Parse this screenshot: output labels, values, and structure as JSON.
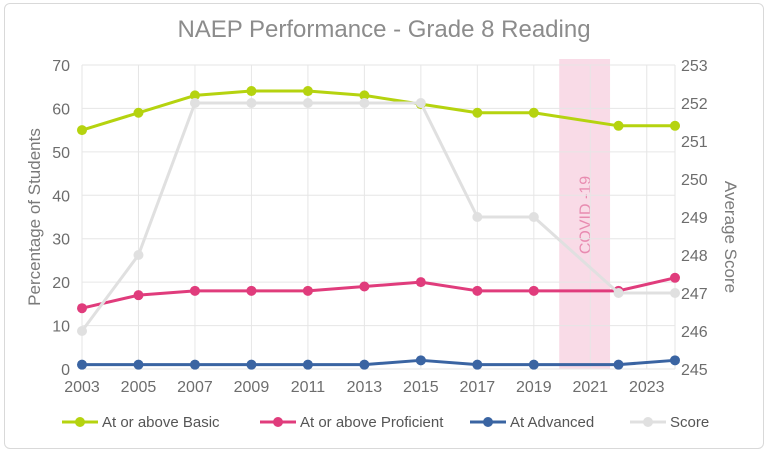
{
  "chart_data": {
    "type": "line",
    "title": "NAEP Performance - Grade 8 Reading",
    "ylabel": "Percentage of  Students",
    "y2label": "Average Score",
    "x_ticks": [
      "2003",
      "2005",
      "2007",
      "2009",
      "2011",
      "2013",
      "2015",
      "2017",
      "2019",
      "2021",
      "2023"
    ],
    "ylim": [
      0,
      70
    ],
    "y_ticks": [
      0,
      10,
      20,
      30,
      40,
      50,
      60,
      70
    ],
    "y2lim": [
      245,
      253
    ],
    "y2_ticks": [
      245,
      246,
      247,
      248,
      249,
      250,
      251,
      252,
      253
    ],
    "grid": true,
    "legend_position": "bottom",
    "annotation": {
      "label": "COVID -19",
      "x_from": 2019.9,
      "x_to": 2021.7,
      "color": "#f9dbe7"
    },
    "series": [
      {
        "name": "At or above Basic",
        "axis": "left",
        "color": "#b5d30f",
        "x": [
          2003,
          2005,
          2007,
          2009,
          2011,
          2013,
          2015,
          2017,
          2019,
          2022,
          2024
        ],
        "values": [
          55,
          59,
          63,
          64,
          64,
          63,
          61,
          59,
          59,
          56,
          56
        ]
      },
      {
        "name": "At or above Proficient",
        "axis": "left",
        "color": "#e03c7c",
        "x": [
          2003,
          2005,
          2007,
          2009,
          2011,
          2013,
          2015,
          2017,
          2019,
          2022,
          2024
        ],
        "values": [
          14,
          17,
          18,
          18,
          18,
          19,
          20,
          18,
          18,
          18,
          21
        ]
      },
      {
        "name": "At Advanced",
        "axis": "left",
        "color": "#3a64a2",
        "x": [
          2003,
          2005,
          2007,
          2009,
          2011,
          2013,
          2015,
          2017,
          2019,
          2022,
          2024
        ],
        "values": [
          1,
          1,
          1,
          1,
          1,
          1,
          2,
          1,
          1,
          1,
          2
        ]
      },
      {
        "name": "Score",
        "axis": "right",
        "color": "#e0e0e0",
        "x": [
          2003,
          2005,
          2007,
          2009,
          2011,
          2013,
          2015,
          2017,
          2019,
          2022,
          2024
        ],
        "values": [
          246,
          248,
          252,
          252,
          252,
          252,
          252,
          249,
          249,
          247,
          247
        ]
      }
    ]
  }
}
